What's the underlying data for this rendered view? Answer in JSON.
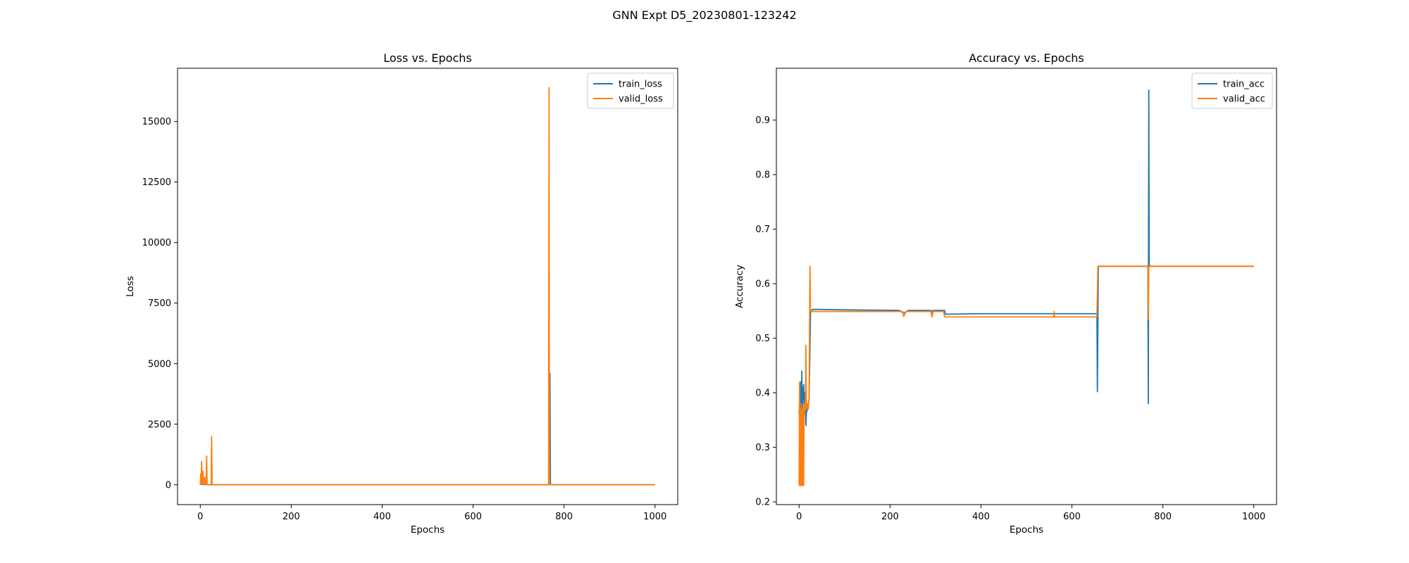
{
  "figure": {
    "suptitle": "GNN Expt D5_20230801-123242"
  },
  "colors": {
    "train": "#1f77b4",
    "valid": "#ff7f0e"
  },
  "chart_data": [
    {
      "type": "line",
      "title": "Loss vs. Epochs",
      "xlabel": "Epochs",
      "ylabel": "Loss",
      "xlim": [
        -50,
        1050
      ],
      "ylim": [
        -820,
        17200
      ],
      "xticks": [
        0,
        200,
        400,
        600,
        800,
        1000
      ],
      "yticks": [
        0,
        2500,
        5000,
        7500,
        10000,
        12500,
        15000
      ],
      "grid": false,
      "legend": "top-right",
      "series": [
        {
          "name": "train_loss",
          "points": [
            [
              0,
              2
            ],
            [
              1,
              120
            ],
            [
              2,
              15
            ],
            [
              3,
              60
            ],
            [
              5,
              8
            ],
            [
              6,
              30
            ],
            [
              10,
              5
            ],
            [
              12,
              40
            ],
            [
              15,
              3
            ],
            [
              25,
              2
            ],
            [
              100,
              1
            ],
            [
              400,
              1
            ],
            [
              700,
              1
            ],
            [
              768,
              1
            ],
            [
              769,
              4600
            ],
            [
              770,
              40
            ],
            [
              771,
              1
            ],
            [
              1000,
              1
            ]
          ]
        },
        {
          "name": "valid_loss",
          "points": [
            [
              0,
              10
            ],
            [
              1,
              450
            ],
            [
              2,
              30
            ],
            [
              3,
              960
            ],
            [
              4,
              200
            ],
            [
              5,
              40
            ],
            [
              6,
              550
            ],
            [
              7,
              20
            ],
            [
              8,
              300
            ],
            [
              9,
              60
            ],
            [
              10,
              300
            ],
            [
              11,
              20
            ],
            [
              12,
              130
            ],
            [
              13,
              5
            ],
            [
              14,
              1180
            ],
            [
              15,
              30
            ],
            [
              16,
              20
            ],
            [
              17,
              2
            ],
            [
              20,
              5
            ],
            [
              24,
              2
            ],
            [
              25,
              2000
            ],
            [
              26,
              10
            ],
            [
              27,
              2
            ],
            [
              100,
              2
            ],
            [
              400,
              2
            ],
            [
              700,
              2
            ],
            [
              766,
              2
            ],
            [
              767,
              16400
            ],
            [
              768,
              5
            ],
            [
              769,
              2
            ],
            [
              1000,
              2
            ]
          ]
        }
      ]
    },
    {
      "type": "line",
      "title": "Accuracy vs. Epochs",
      "xlabel": "Epochs",
      "ylabel": "Accuracy",
      "xlim": [
        -50,
        1050
      ],
      "ylim": [
        0.195,
        0.995
      ],
      "xticks": [
        0,
        200,
        400,
        600,
        800,
        1000
      ],
      "yticks": [
        0.2,
        0.3,
        0.4,
        0.5,
        0.6,
        0.7,
        0.8,
        0.9
      ],
      "grid": false,
      "legend": "top-right",
      "series": [
        {
          "name": "train_acc",
          "points": [
            [
              0,
              0.36
            ],
            [
              1,
              0.38
            ],
            [
              2,
              0.35
            ],
            [
              3,
              0.39
            ],
            [
              4,
              0.42
            ],
            [
              5,
              0.37
            ],
            [
              6,
              0.44
            ],
            [
              7,
              0.36
            ],
            [
              8,
              0.41
            ],
            [
              9,
              0.39
            ],
            [
              10,
              0.415
            ],
            [
              11,
              0.37
            ],
            [
              12,
              0.4
            ],
            [
              13,
              0.36
            ],
            [
              14,
              0.38
            ],
            [
              15,
              0.34
            ],
            [
              16,
              0.37
            ],
            [
              17,
              0.365
            ],
            [
              18,
              0.375
            ],
            [
              20,
              0.37
            ],
            [
              22,
              0.39
            ],
            [
              24,
              0.485
            ],
            [
              25,
              0.545
            ],
            [
              26,
              0.55
            ],
            [
              30,
              0.553
            ],
            [
              100,
              0.552
            ],
            [
              220,
              0.551
            ],
            [
              230,
              0.546
            ],
            [
              240,
              0.551
            ],
            [
              290,
              0.551
            ],
            [
              292,
              0.548
            ],
            [
              295,
              0.551
            ],
            [
              320,
              0.551
            ],
            [
              322,
              0.544
            ],
            [
              400,
              0.545
            ],
            [
              560,
              0.545
            ],
            [
              655,
              0.545
            ],
            [
              656,
              0.402
            ],
            [
              658,
              0.632
            ],
            [
              700,
              0.632
            ],
            [
              767,
              0.632
            ],
            [
              768,
              0.38
            ],
            [
              769,
              0.955
            ],
            [
              770,
              0.635
            ],
            [
              772,
              0.632
            ],
            [
              1000,
              0.632
            ]
          ]
        },
        {
          "name": "valid_acc",
          "points": [
            [
              0,
              0.23
            ],
            [
              1,
              0.42
            ],
            [
              2,
              0.23
            ],
            [
              3,
              0.37
            ],
            [
              4,
              0.23
            ],
            [
              5,
              0.38
            ],
            [
              6,
              0.23
            ],
            [
              7,
              0.37
            ],
            [
              8,
              0.23
            ],
            [
              9,
              0.37
            ],
            [
              10,
              0.23
            ],
            [
              11,
              0.38
            ],
            [
              12,
              0.36
            ],
            [
              14,
              0.375
            ],
            [
              15,
              0.487
            ],
            [
              16,
              0.37
            ],
            [
              18,
              0.38
            ],
            [
              20,
              0.37
            ],
            [
              22,
              0.39
            ],
            [
              23,
              0.52
            ],
            [
              24,
              0.632
            ],
            [
              25,
              0.55
            ],
            [
              30,
              0.549
            ],
            [
              100,
              0.549
            ],
            [
              228,
              0.549
            ],
            [
              230,
              0.54
            ],
            [
              235,
              0.549
            ],
            [
              290,
              0.549
            ],
            [
              292,
              0.539
            ],
            [
              295,
              0.549
            ],
            [
              318,
              0.549
            ],
            [
              320,
              0.539
            ],
            [
              400,
              0.539
            ],
            [
              560,
              0.539
            ],
            [
              561,
              0.549
            ],
            [
              562,
              0.539
            ],
            [
              655,
              0.539
            ],
            [
              657,
              0.632
            ],
            [
              700,
              0.632
            ],
            [
              767,
              0.632
            ],
            [
              768,
              0.535
            ],
            [
              769,
              0.632
            ],
            [
              1000,
              0.632
            ]
          ]
        }
      ]
    }
  ]
}
